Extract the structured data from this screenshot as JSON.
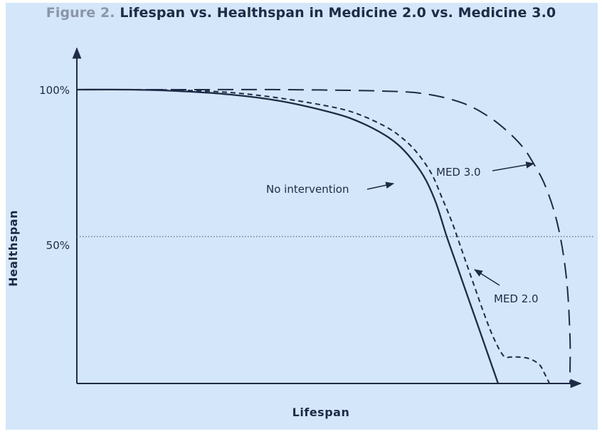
{
  "title": {
    "prefix": "Figure 2.",
    "main": "Lifespan vs. Healthspan in Medicine 2.0 vs. Medicine 3.0"
  },
  "colors": {
    "background": "#d4e6f9",
    "ink": "#1e2b46",
    "title_prefix": "#8a96a8",
    "reference_line": "#6c7c95"
  },
  "chart_data": {
    "type": "line",
    "title": "Figure 2. Lifespan vs. Healthspan in Medicine 2.0 vs. Medicine 3.0",
    "xlabel": "Lifespan",
    "ylabel": "Healthspan",
    "xlim": [
      0,
      100
    ],
    "ylim": [
      0,
      100
    ],
    "y_ticks": [
      {
        "value": 100,
        "label": "100%"
      },
      {
        "value": 50,
        "label": "50%"
      }
    ],
    "grid": false,
    "reference_lines": [
      {
        "axis": "y",
        "value": 50,
        "style": "dotted"
      }
    ],
    "series": [
      {
        "name": "No intervention",
        "style": "solid",
        "x": [
          0,
          10,
          20,
          30,
          40,
          50,
          55,
          60,
          63,
          66,
          68,
          70,
          72,
          74,
          76,
          78,
          80,
          82
        ],
        "y": [
          100,
          100,
          99.5,
          98.3,
          96,
          92,
          89,
          84.5,
          80.5,
          74.5,
          69,
          61,
          50,
          40,
          30,
          20,
          10,
          0
        ]
      },
      {
        "name": "MED 2.0",
        "style": "dashed",
        "x": [
          0,
          10,
          20,
          30,
          40,
          50,
          55,
          60,
          63,
          66,
          69,
          71,
          73,
          75,
          77,
          79,
          81,
          83,
          84.5,
          86,
          88,
          90,
          91,
          92
        ],
        "y": [
          100,
          100,
          99.8,
          99,
          97,
          94,
          91.5,
          87.5,
          84,
          79,
          71.5,
          63.5,
          55,
          45,
          35,
          25,
          16,
          9.5,
          9,
          9,
          8.5,
          6.5,
          3.5,
          0
        ]
      },
      {
        "name": "MED 3.0",
        "style": "long-dashed",
        "x": [
          0,
          20,
          40,
          60,
          68,
          75,
          80,
          84,
          87,
          89,
          91,
          93,
          94.5,
          95.5,
          96,
          96,
          96
        ],
        "y": [
          100,
          100,
          100,
          99.5,
          98.5,
          95.5,
          91,
          85.5,
          80,
          74.5,
          68,
          58,
          46,
          32,
          15,
          5,
          0
        ]
      }
    ],
    "annotations": [
      {
        "text": "No intervention",
        "points_to": "No intervention"
      },
      {
        "text": "MED 3.0",
        "points_to": "MED 3.0"
      },
      {
        "text": "MED 2.0",
        "points_to": "MED 2.0"
      }
    ]
  }
}
